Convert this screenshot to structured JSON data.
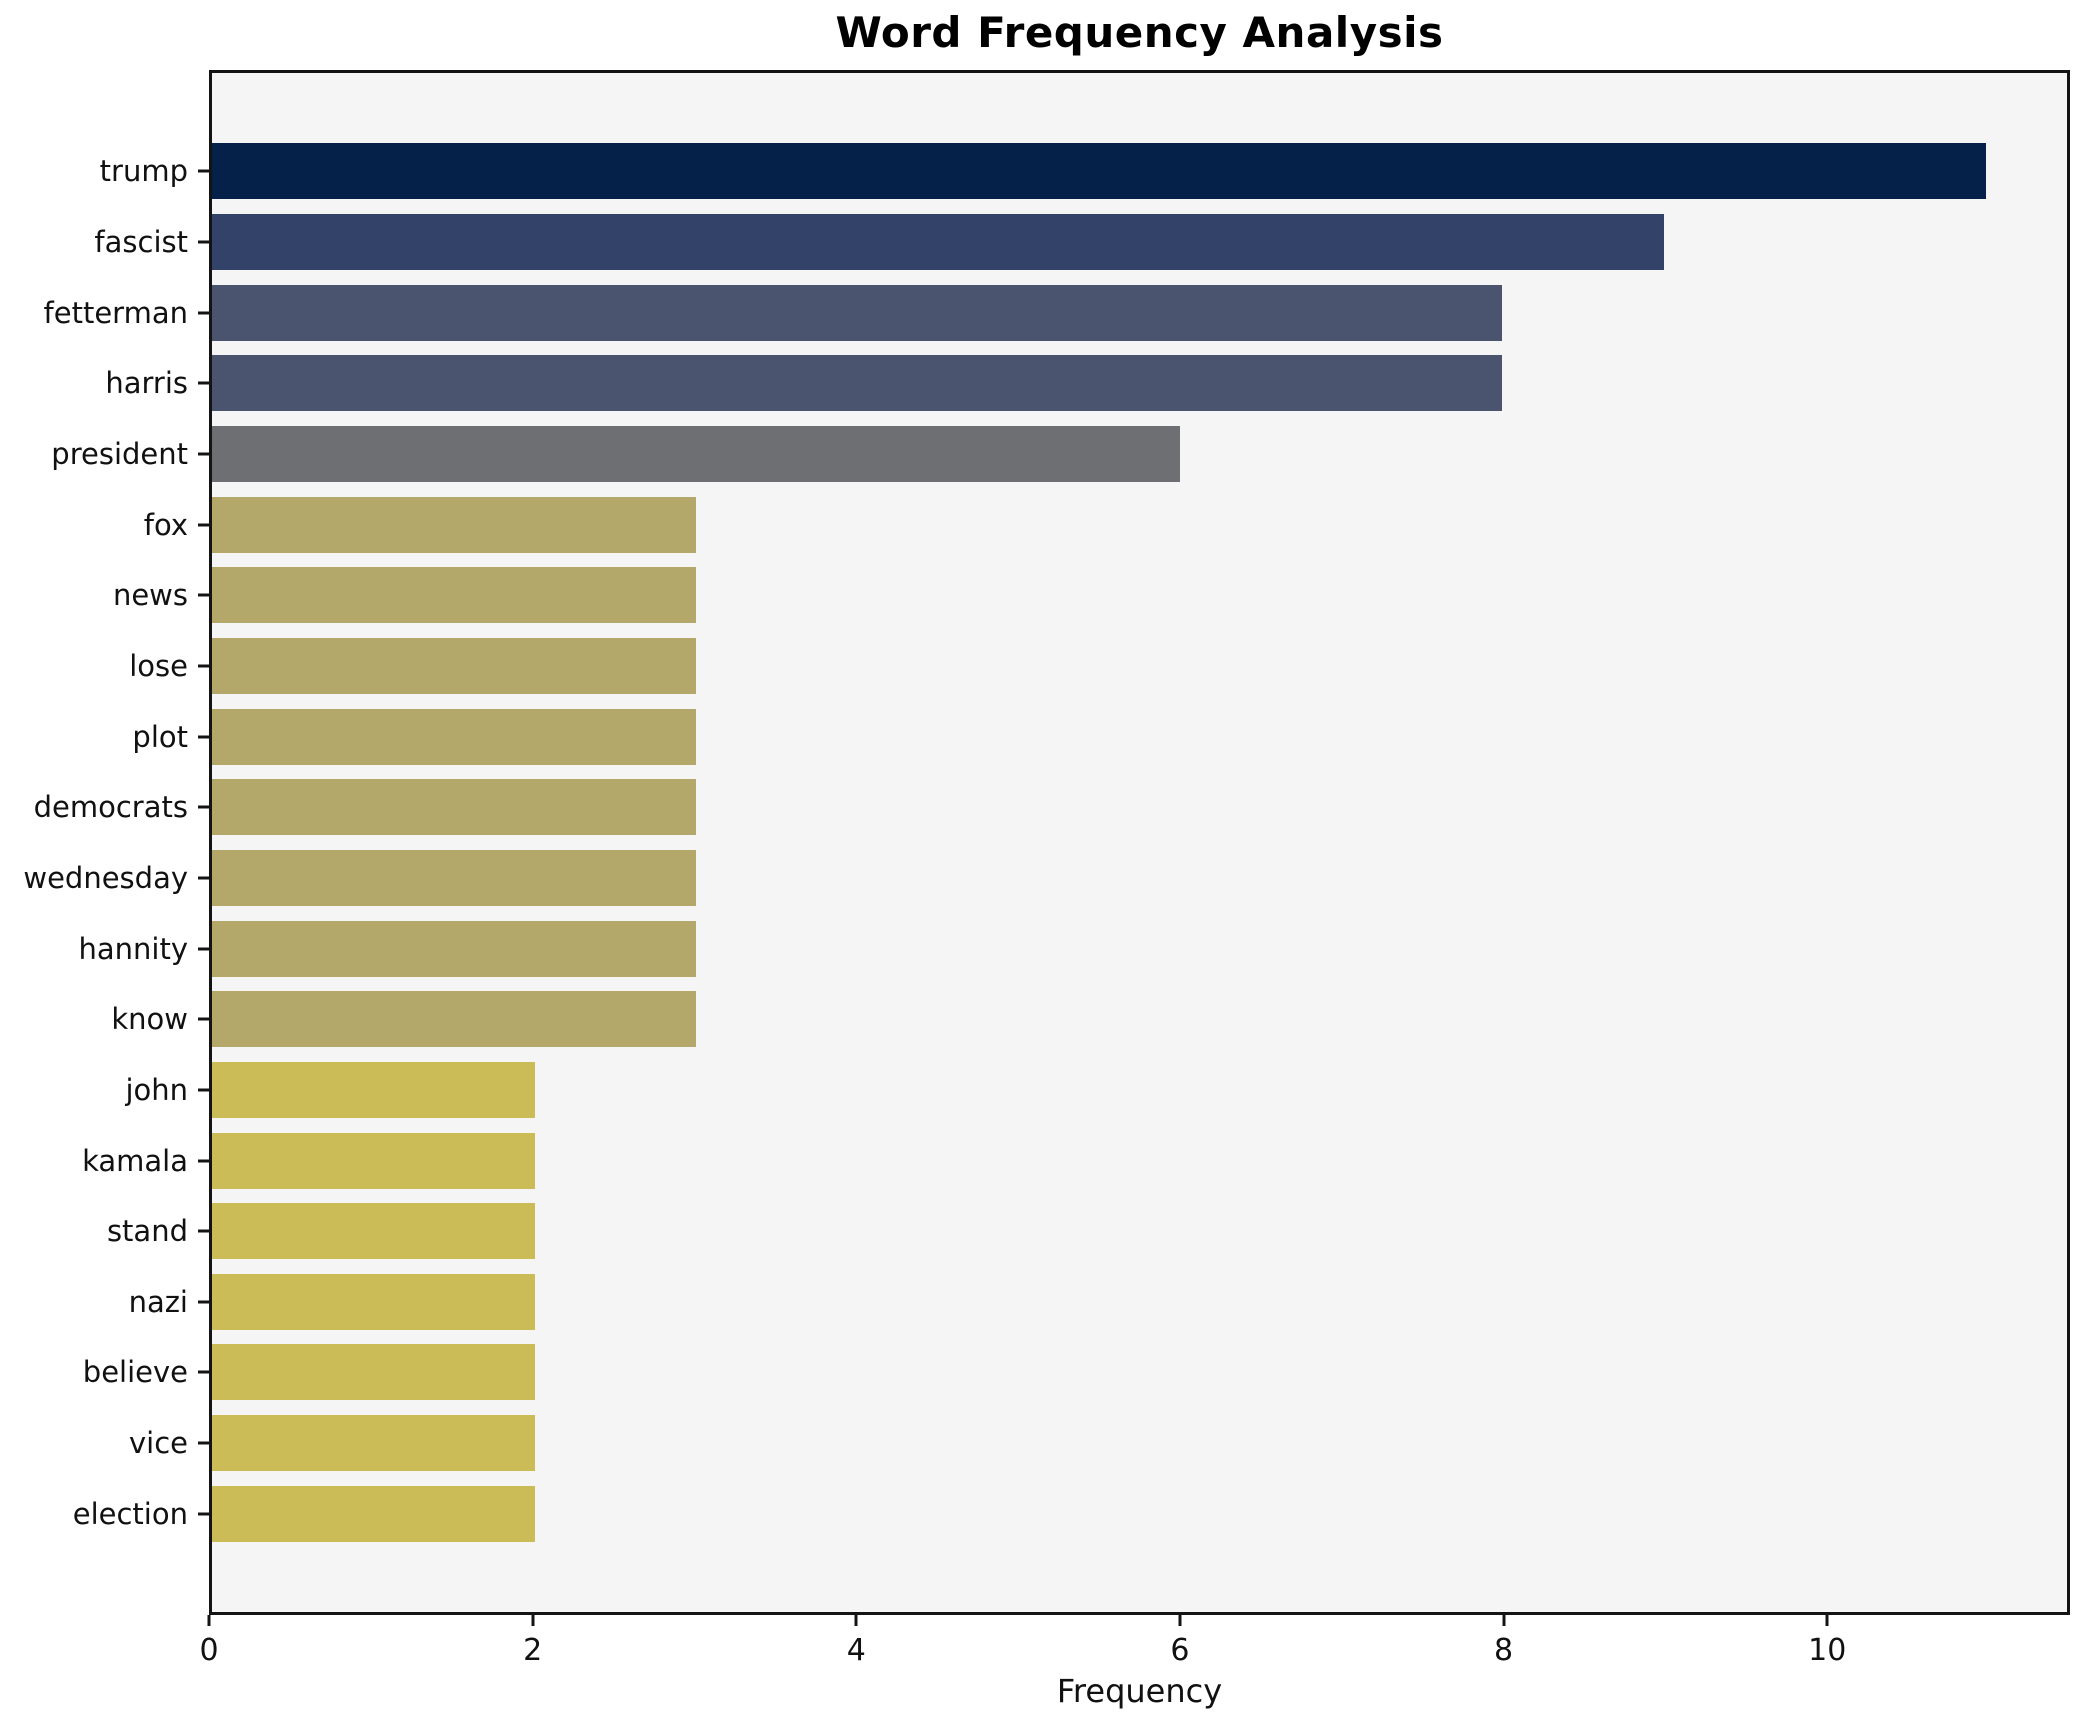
{
  "chart_data": {
    "type": "bar",
    "orientation": "horizontal",
    "title": "Word Frequency Analysis",
    "xlabel": "Frequency",
    "ylabel": "",
    "categories": [
      "trump",
      "fascist",
      "fetterman",
      "harris",
      "president",
      "fox",
      "news",
      "lose",
      "plot",
      "democrats",
      "wednesday",
      "hannity",
      "know",
      "john",
      "kamala",
      "stand",
      "nazi",
      "believe",
      "vice",
      "election"
    ],
    "values": [
      11,
      9,
      8,
      8,
      6,
      3,
      3,
      3,
      3,
      3,
      3,
      3,
      3,
      2,
      2,
      2,
      2,
      2,
      2,
      2
    ],
    "bar_colors": [
      "#052149",
      "#334268",
      "#4a546f",
      "#4a546f",
      "#6e6f72",
      "#b3a769",
      "#b3a769",
      "#b3a769",
      "#b3a769",
      "#b3a769",
      "#b3a769",
      "#b3a769",
      "#b3a769",
      "#ccbc57",
      "#ccbc57",
      "#ccbc57",
      "#ccbc57",
      "#ccbc57",
      "#ccbc57",
      "#ccbc57"
    ],
    "xlim": [
      0,
      11.5
    ],
    "xticks": [
      0,
      2,
      4,
      6,
      8,
      10
    ],
    "grid": false,
    "legend_position": "none",
    "plot_background": "#f5f5f6",
    "figure_background": "#ffffff",
    "spine_color": "#141414"
  }
}
